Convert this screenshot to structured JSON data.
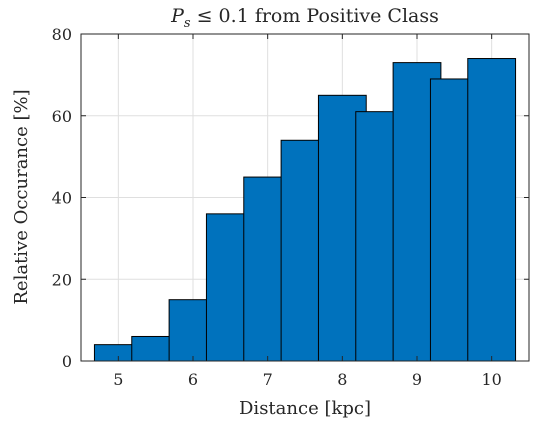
{
  "chart_data": {
    "type": "bar",
    "title": "P_s ≤ 0.1 from Positive Class",
    "title_parts": {
      "var": "P",
      "sub": "s",
      "rest": " ≤ 0.1 from Positive Class"
    },
    "xlabel": "Distance [kpc]",
    "ylabel": "Relative Occurance [%]",
    "x": [
      5,
      5.5,
      6,
      6.5,
      7,
      7.5,
      8,
      8.5,
      9,
      9.5,
      10
    ],
    "values": [
      4,
      6,
      15,
      36,
      45,
      54,
      65,
      61,
      73,
      69,
      74
    ],
    "xlim": [
      4.5,
      10.5
    ],
    "ylim": [
      0,
      80
    ],
    "xticks": [
      5,
      6,
      7,
      8,
      9,
      10
    ],
    "yticks": [
      0,
      20,
      40,
      60,
      80
    ],
    "grid": true,
    "bar_color": "#0072BD"
  }
}
